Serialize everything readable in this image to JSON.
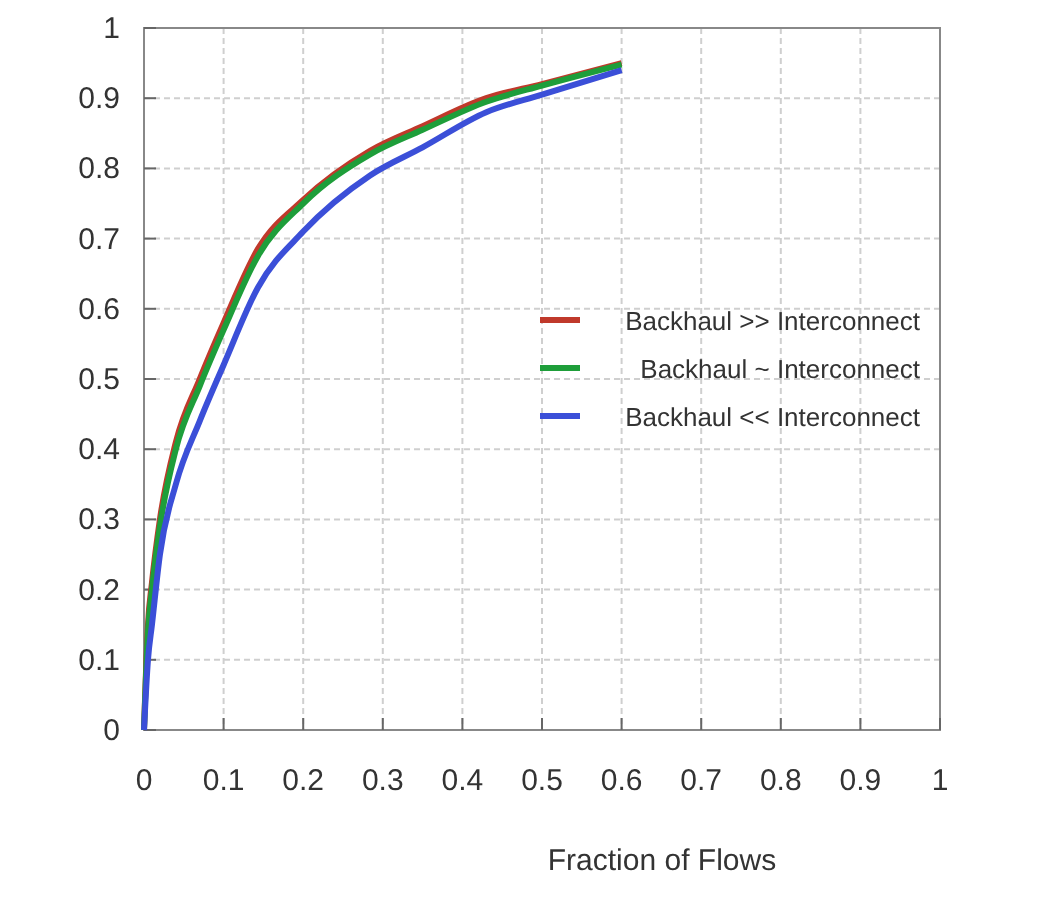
{
  "chart_data": {
    "type": "line",
    "xlabel": "Fraction of Flows",
    "xlim": [
      0,
      1
    ],
    "xticks": [
      0,
      0.1,
      0.2,
      0.3,
      0.4,
      0.5,
      0.6,
      0.7,
      0.8,
      0.9,
      1
    ],
    "ylim": [
      0,
      1
    ],
    "yticks": [
      0,
      0.1,
      0.2,
      0.3,
      0.4,
      0.5,
      0.6,
      0.7,
      0.8,
      0.9,
      1
    ],
    "grid": true,
    "legend": "right",
    "x": [
      0,
      0.005,
      0.01,
      0.02,
      0.04,
      0.07,
      0.1,
      0.143,
      0.2,
      0.284,
      0.35,
      0.43,
      0.5,
      0.6
    ],
    "series": [
      {
        "name": "Backhaul >> Interconnect",
        "color": "#c0392b",
        "values": [
          0,
          0.15,
          0.21,
          0.3,
          0.41,
          0.5,
          0.58,
          0.685,
          0.755,
          0.825,
          0.86,
          0.9,
          0.92,
          0.95
        ]
      },
      {
        "name": "Backhaul ~ Interconnect",
        "color": "#1e9e3a",
        "values": [
          0,
          0.14,
          0.2,
          0.29,
          0.4,
          0.49,
          0.57,
          0.675,
          0.75,
          0.82,
          0.855,
          0.895,
          0.918,
          0.948
        ]
      },
      {
        "name": "Backhaul << Interconnect",
        "color": "#3b4fd8",
        "values": [
          0,
          0.1,
          0.15,
          0.25,
          0.35,
          0.44,
          0.52,
          0.63,
          0.71,
          0.79,
          0.83,
          0.88,
          0.905,
          0.94
        ]
      }
    ]
  }
}
